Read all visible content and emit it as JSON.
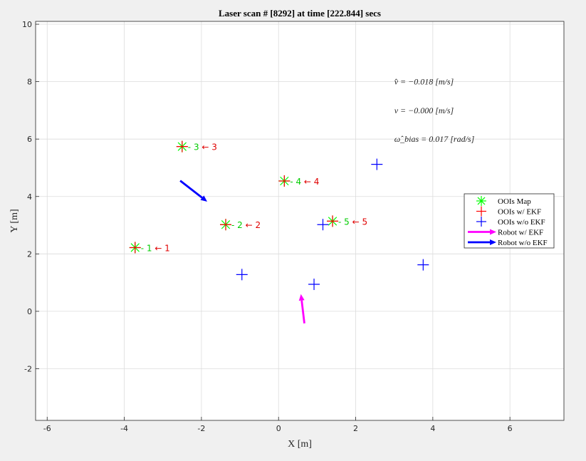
{
  "chart_data": {
    "type": "scatter",
    "title": "Laser scan # [8292] at time [222.844] secs",
    "xlabel": "X [m]",
    "ylabel": "Y [m]",
    "xlim": [
      -6.3,
      7.4
    ],
    "ylim": [
      -3.8,
      10.1
    ],
    "xticks": [
      -6,
      -4,
      -2,
      0,
      2,
      4,
      6
    ],
    "yticks": [
      -2,
      0,
      2,
      4,
      6,
      8,
      10
    ],
    "grid": true,
    "legend_position": "right",
    "legend": [
      {
        "key": "map",
        "label": "OOIs Map",
        "color": "#00ff00",
        "marker": "asterisk"
      },
      {
        "key": "ekf",
        "label": "OOIs w/ EKF",
        "color": "#ff0000",
        "marker": "plus"
      },
      {
        "key": "noekf",
        "label": "OOIs w/o EKF",
        "color": "#0000ff",
        "marker": "plus"
      },
      {
        "key": "robot_ekf",
        "label": "Robot w/ EKF",
        "color": "#ff00ff",
        "marker": "arrow"
      },
      {
        "key": "robot_noekf",
        "label": "Robot w/o EKF",
        "color": "#0000ff",
        "marker": "arrow"
      }
    ],
    "series": [
      {
        "name": "OOIs Map",
        "color": "#00ff00",
        "points": [
          [
            -3.72,
            2.22
          ],
          [
            -1.37,
            3.02
          ],
          [
            -2.5,
            5.74
          ],
          [
            0.15,
            4.54
          ],
          [
            1.4,
            3.14
          ]
        ]
      },
      {
        "name": "OOIs w/ EKF",
        "color": "#ff0000",
        "points": [
          [
            -3.72,
            2.22
          ],
          [
            -1.37,
            3.02
          ],
          [
            -2.5,
            5.74
          ],
          [
            0.15,
            4.54
          ],
          [
            1.4,
            3.14
          ]
        ]
      },
      {
        "name": "OOIs w/o EKF",
        "color": "#0000ff",
        "points": [
          [
            -0.95,
            1.28
          ],
          [
            0.92,
            0.94
          ],
          [
            1.15,
            3.02
          ],
          [
            2.55,
            5.12
          ],
          [
            3.75,
            1.62
          ]
        ]
      }
    ],
    "point_labels": [
      {
        "x": -3.72,
        "y": 2.22,
        "id": "1",
        "match": "← 1"
      },
      {
        "x": -1.37,
        "y": 3.02,
        "id": "2",
        "match": "← 2"
      },
      {
        "x": -2.5,
        "y": 5.74,
        "id": "3",
        "match": "← 3"
      },
      {
        "x": 0.15,
        "y": 4.54,
        "id": "4",
        "match": "← 4"
      },
      {
        "x": 1.4,
        "y": 3.14,
        "id": "5",
        "match": "← 5"
      }
    ],
    "robots": [
      {
        "name": "Robot w/ EKF",
        "color": "#ff00ff",
        "from": [
          0.67,
          -0.42
        ],
        "to": [
          0.58,
          0.6
        ]
      },
      {
        "name": "Robot w/o EKF",
        "color": "#0000ff",
        "from": [
          -2.55,
          4.55
        ],
        "to": [
          -1.85,
          3.82
        ]
      }
    ],
    "annotations": [
      {
        "x": 3.0,
        "y": 8.0,
        "text": "v̂ = −0.018    [m/s]"
      },
      {
        "x": 3.0,
        "y": 7.0,
        "text": "v = −0.000    [m/s]"
      },
      {
        "x": 3.0,
        "y": 6.0,
        "text": "ω̂_bias = 0.017    [rad/s]"
      }
    ]
  }
}
